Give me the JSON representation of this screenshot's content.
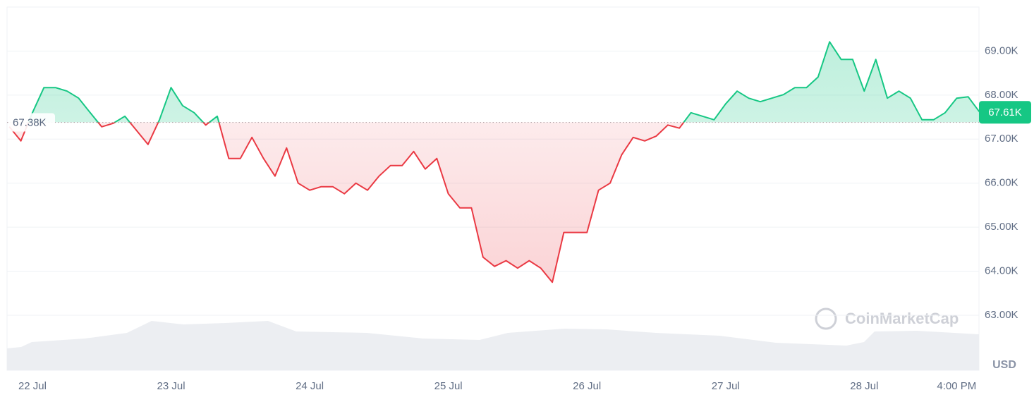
{
  "chart_data": {
    "type": "line",
    "categories": [
      null,
      null,
      "22 Jul",
      null,
      null,
      null,
      null,
      null,
      null,
      null,
      null,
      null,
      null,
      null,
      "23 Jul",
      null,
      null,
      null,
      null,
      null,
      null,
      null,
      null,
      null,
      null,
      null,
      "24 Jul",
      null,
      null,
      null,
      null,
      null,
      null,
      null,
      null,
      null,
      null,
      null,
      "25 Jul",
      null,
      null,
      null,
      null,
      null,
      null,
      null,
      null,
      null,
      null,
      null,
      "26 Jul",
      null,
      null,
      null,
      null,
      null,
      null,
      null,
      null,
      null,
      null,
      null,
      "27 Jul",
      null,
      null,
      null,
      null,
      null,
      null,
      null,
      null,
      null,
      null,
      null,
      "28 Jul",
      null,
      null,
      null,
      null,
      null,
      null,
      null,
      "4:00 PM",
      null,
      null
    ],
    "values": [
      67280,
      66960,
      67600,
      68170,
      68170,
      68090,
      67930,
      67600,
      67280,
      67360,
      67520,
      67200,
      66880,
      67440,
      68170,
      67760,
      67600,
      67320,
      67520,
      66560,
      66560,
      67040,
      66560,
      66160,
      66800,
      66000,
      65840,
      65920,
      65920,
      65760,
      66000,
      65840,
      66160,
      66400,
      66400,
      66720,
      66320,
      66560,
      65760,
      65440,
      65440,
      64320,
      64110,
      64240,
      64070,
      64240,
      64070,
      63750,
      64880,
      64880,
      64880,
      65840,
      66000,
      66640,
      67040,
      66960,
      67070,
      67320,
      67250,
      67600,
      67520,
      67440,
      67800,
      68090,
      67930,
      67850,
      67930,
      68010,
      68170,
      68170,
      68410,
      69210,
      68810,
      68810,
      68090,
      68810,
      67930,
      68090,
      67930,
      67440,
      67440,
      67600,
      67930,
      67960,
      67610
    ],
    "baseline": {
      "value": 67380,
      "label": "67.38K"
    },
    "last_price": {
      "value": 67610,
      "label": "67.61K"
    },
    "color_up": "#16c784",
    "color_down": "#ea3943",
    "ylim": [
      61750,
      70000
    ],
    "yticks": [
      {
        "value": 63000,
        "label": "63.00K"
      },
      {
        "value": 64000,
        "label": "64.00K"
      },
      {
        "value": 65000,
        "label": "65.00K"
      },
      {
        "value": 66000,
        "label": "66.00K"
      },
      {
        "value": 67000,
        "label": "67.00K"
      },
      {
        "value": 68000,
        "label": "68.00K"
      },
      {
        "value": 69000,
        "label": "69.00K"
      }
    ],
    "grid": true,
    "y_unit": "USD",
    "watermark": "CoinMarketCap"
  }
}
